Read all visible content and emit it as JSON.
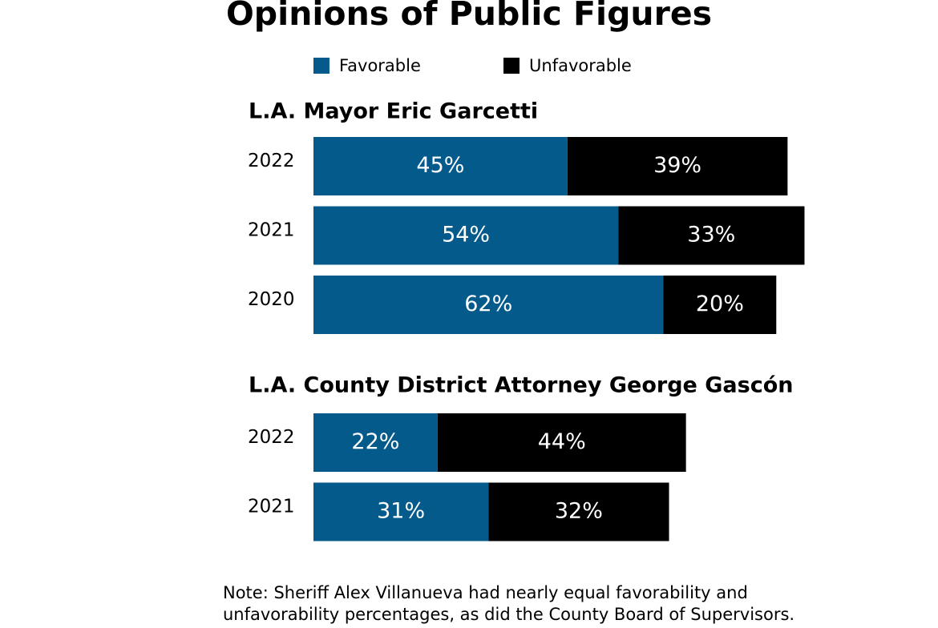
{
  "title": "Opinions of Public Figures",
  "note": [
    "Note: Sheriff Alex Villanueva had nearly equal favorability and",
    "unfavorability percentages, as did the County Board of Supervisors."
  ],
  "chart_data": [
    {
      "type": "bar",
      "orientation": "horizontal",
      "stacked": true,
      "title": "L.A. Mayor Eric Garcetti",
      "categories": [
        "2022",
        "2021",
        "2020"
      ],
      "series": [
        {
          "name": "Favorable",
          "color": "#055a8c",
          "values": [
            45,
            54,
            62
          ],
          "value_labels": [
            "45%",
            "54%",
            "62%"
          ]
        },
        {
          "name": "Unfavorable",
          "color": "#000000",
          "values": [
            39,
            33,
            20
          ],
          "value_labels": [
            "39%",
            "33%",
            "20%"
          ]
        }
      ]
    },
    {
      "type": "bar",
      "orientation": "horizontal",
      "stacked": true,
      "title": "L.A. County District Attorney George Gascón",
      "categories": [
        "2022",
        "2021"
      ],
      "series": [
        {
          "name": "Favorable",
          "color": "#055a8c",
          "values": [
            22,
            31
          ],
          "value_labels": [
            "22%",
            "31%"
          ]
        },
        {
          "name": "Unfavorable",
          "color": "#000000",
          "values": [
            44,
            32
          ],
          "value_labels": [
            "44%",
            "32%"
          ]
        }
      ]
    }
  ]
}
